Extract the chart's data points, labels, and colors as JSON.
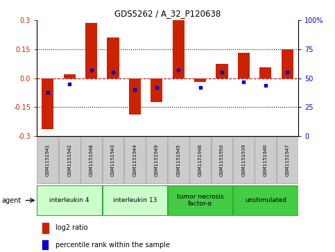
{
  "title": "GDS5262 / A_32_P120638",
  "samples": [
    "GSM1151941",
    "GSM1151942",
    "GSM1151948",
    "GSM1151943",
    "GSM1151944",
    "GSM1151949",
    "GSM1151945",
    "GSM1151946",
    "GSM1151950",
    "GSM1151939",
    "GSM1151940",
    "GSM1151947"
  ],
  "log2_ratio": [
    -0.265,
    0.02,
    0.285,
    0.21,
    -0.19,
    -0.125,
    0.3,
    -0.02,
    0.075,
    0.13,
    0.055,
    0.15
  ],
  "percentile": [
    38,
    45,
    57,
    55,
    40,
    42,
    57,
    42,
    55,
    47,
    44,
    55
  ],
  "groups": [
    {
      "label": "interleukin 4",
      "start": 0,
      "end": 3,
      "color": "#ccffcc"
    },
    {
      "label": "interleukin 13",
      "start": 3,
      "end": 6,
      "color": "#ccffcc"
    },
    {
      "label": "tumor necrosis\nfactor-α",
      "start": 6,
      "end": 9,
      "color": "#44cc44"
    },
    {
      "label": "unstimulated",
      "start": 9,
      "end": 12,
      "color": "#44cc44"
    }
  ],
  "ylim": [
    -0.3,
    0.3
  ],
  "yticks_left": [
    -0.3,
    -0.15,
    0.0,
    0.15,
    0.3
  ],
  "yticks_right": [
    0,
    25,
    50,
    75,
    100
  ],
  "bar_color": "#cc2200",
  "dot_color": "#0000cc",
  "hline_color": "#cc0000",
  "grid_color": "#000000",
  "bg_plot": "#ffffff",
  "bg_sample": "#cccccc",
  "label_color_left": "#cc2200",
  "label_color_right": "#0000cc"
}
